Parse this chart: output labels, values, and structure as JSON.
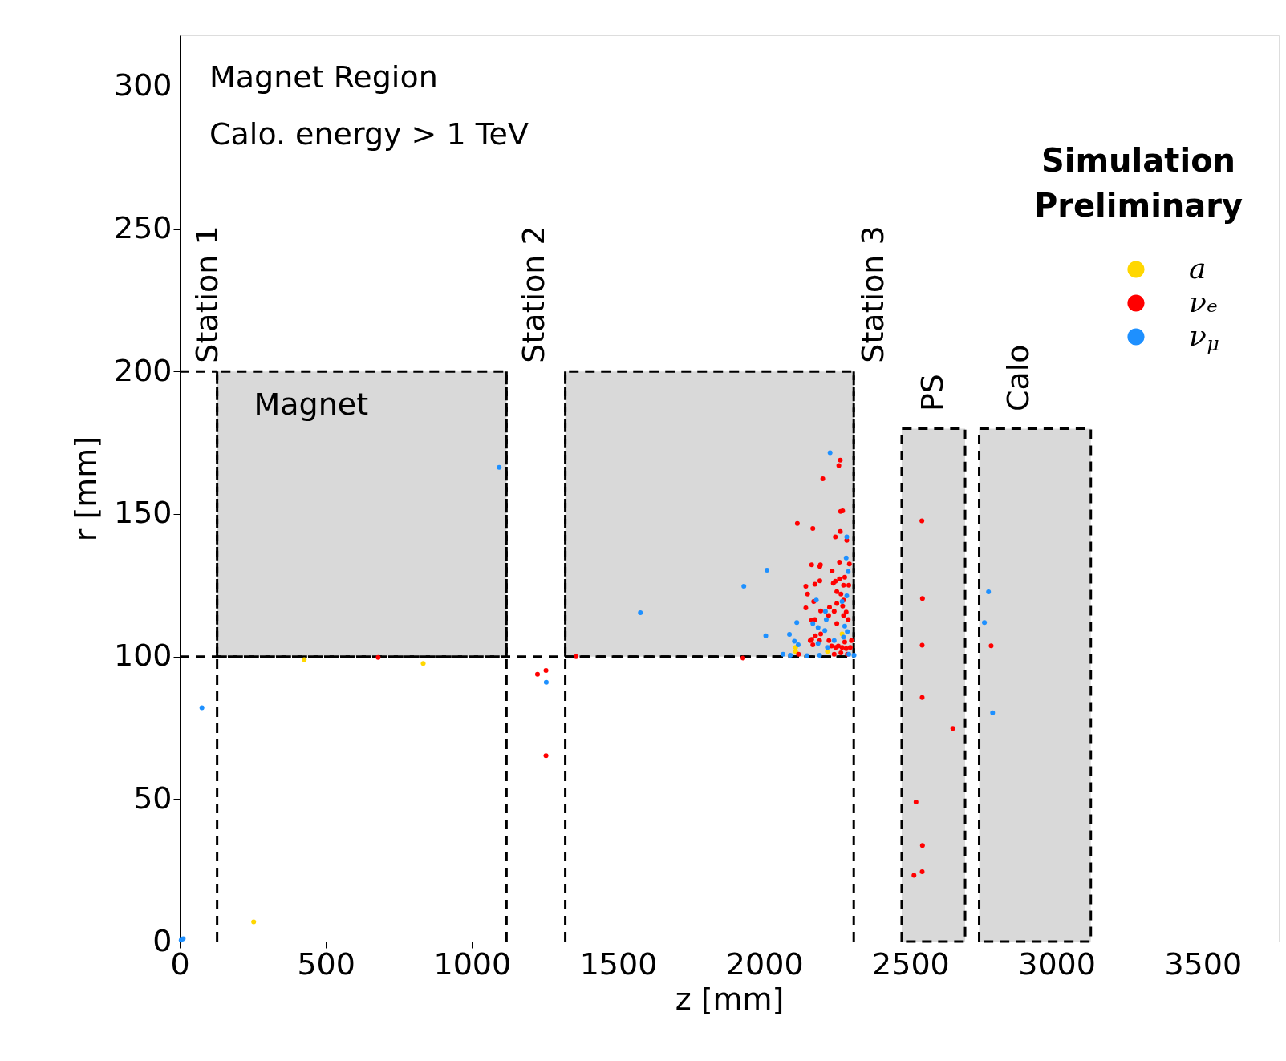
{
  "chart_data": {
    "type": "scatter",
    "xlabel": "z [mm]",
    "ylabel": "r [mm]",
    "xlim": [
      0,
      3760
    ],
    "ylim": [
      0,
      318
    ],
    "xticks": [
      0,
      500,
      1000,
      1500,
      2000,
      2500,
      3000,
      3500
    ],
    "yticks": [
      0,
      50,
      100,
      150,
      200,
      250,
      300
    ],
    "grid": false,
    "legend": "top right",
    "annotations": [
      "Magnet Region",
      "Calo. energy > 1 TeV",
      "Simulation\nPreliminary",
      "Station 1",
      "Station 2",
      "Station 3",
      "PS",
      "Calo",
      "Magnet"
    ],
    "series": [
      {
        "type": "area",
        "color": "#d9d9d9",
        "line_style": "dashed",
        "x": [
          128,
          128,
          1118,
          1118,
          128
        ],
        "values": [
          100,
          200,
          200,
          100,
          100
        ]
      },
      {
        "type": "area",
        "color": "#d9d9d9",
        "line_style": "dashed",
        "x": [
          1319,
          1319,
          2306,
          2306,
          1319
        ],
        "values": [
          100,
          200,
          200,
          100,
          100
        ]
      },
      {
        "type": "area",
        "color": "#d9d9d9",
        "line_style": "dashed",
        "x": [
          2470,
          2470,
          2687,
          2687,
          2470
        ],
        "values": [
          0,
          180,
          180,
          0,
          0
        ]
      },
      {
        "type": "area",
        "color": "#d9d9d9",
        "line_style": "dashed",
        "x": [
          2735,
          2735,
          3117,
          3117,
          2735
        ],
        "values": [
          0,
          180,
          180,
          0,
          0
        ]
      },
      {
        "type": "line",
        "color": "#000000",
        "line_style": "dashed",
        "x": [
          0,
          128
        ],
        "values": [
          200,
          200
        ]
      },
      {
        "type": "line",
        "color": "#000000",
        "line_style": "dashed",
        "x": [
          0,
          2306
        ],
        "values": [
          100,
          100
        ]
      },
      {
        "type": "line",
        "color": "#000000",
        "line_style": "dashed",
        "x": [
          128,
          128
        ],
        "values": [
          0,
          200
        ]
      },
      {
        "type": "line",
        "color": "#000000",
        "line_style": "dashed",
        "x": [
          1118,
          1118
        ],
        "values": [
          0,
          200
        ]
      },
      {
        "type": "line",
        "color": "#000000",
        "line_style": "dashed",
        "x": [
          1319,
          1319
        ],
        "values": [
          0,
          200
        ]
      },
      {
        "type": "line",
        "color": "#000000",
        "line_style": "dashed",
        "x": [
          2306,
          2306
        ],
        "values": [
          0,
          200
        ]
      },
      {
        "marker": "circle",
        "name": "a",
        "color": "#ffd700",
        "x": [
          426,
          833,
          253,
          2266,
          2107,
          2216,
          2107
        ],
        "values": [
          98.9,
          97.6,
          6.9,
          107.9,
          103.2,
          101.8,
          101.8
        ]
      },
      {
        "marker": "circle",
        "name": "νₑ",
        "color": "#ff0000",
        "x": [
          679,
          1224,
          1253,
          1253,
          1356,
          2539,
          2541,
          2540,
          2540,
          2645,
          2519,
          2541,
          2540,
          2512,
          2776,
          2260,
          2255,
          2200,
          2268,
          2261,
          2113,
          2166,
          2260,
          2243,
          2282,
          2257,
          2162,
          2192,
          2190,
          2291,
          2232,
          2275,
          2257,
          2243,
          2289,
          2271,
          2190,
          2173,
          2142,
          2236,
          2248,
          2262,
          2148,
          2169,
          2271,
          2248,
          2268,
          2142,
          2193,
          2223,
          2239,
          2280,
          2271,
          2220,
          2248,
          2287,
          2162,
          2173,
          2193,
          2175,
          2157,
          2166,
          2189,
          2221,
          2275,
          2298,
          2230,
          2244,
          2253,
          2266,
          2280,
          2294,
          2239,
          2262,
          2284,
          2162,
          2117,
          1927
        ],
        "values": [
          99.7,
          93.8,
          95.1,
          65.2,
          100,
          147.6,
          120.4,
          104,
          85.6,
          74.8,
          49,
          33.7,
          24.5,
          23.2,
          103.8,
          168.9,
          167,
          162.4,
          151.1,
          150.9,
          146.7,
          144.9,
          143.9,
          142,
          140.8,
          133.1,
          132.2,
          132.2,
          131.6,
          132.5,
          130,
          127.8,
          127.3,
          126.4,
          125,
          125,
          126.6,
          125.4,
          124.7,
          125.7,
          122.8,
          121.9,
          121.9,
          119.3,
          119.8,
          118.6,
          117.7,
          117.1,
          116,
          117.3,
          115.9,
          115.6,
          114.4,
          114.4,
          111.6,
          113,
          112.8,
          113,
          107.9,
          107.3,
          105.6,
          104.1,
          105.6,
          105.6,
          105.1,
          105.6,
          103.7,
          103.2,
          103.7,
          103.2,
          102.8,
          103.2,
          100.8,
          101.3,
          100.8,
          106,
          100.8,
          99.5
        ]
      },
      {
        "marker": "circle",
        "name": "ν$_{μ}$",
        "color": "#1e90ff",
        "x": [
          1093,
          1576,
          1254,
          76,
          5,
          12,
          2767,
          2753,
          2781,
          2225,
          2282,
          2280,
          2287,
          2009,
          2178,
          2282,
          2266,
          1930,
          2209,
          2212,
          2111,
          2166,
          2184,
          2207,
          2275,
          2284,
          2005,
          2086,
          2103,
          2184,
          2239,
          2116,
          2216,
          2064,
          2089,
          2146,
          2189,
          2289,
          2307,
          2271
        ],
        "values": [
          166.4,
          115.4,
          91,
          82,
          0.5,
          1,
          122.7,
          111.9,
          80.3,
          171.5,
          142,
          134.6,
          129.8,
          130.3,
          119.8,
          121.3,
          119.3,
          124.7,
          115.9,
          113,
          111.9,
          111.6,
          110.2,
          109.1,
          110.7,
          108.8,
          107.3,
          107.8,
          105.4,
          104.6,
          105.6,
          104.1,
          103.2,
          100.8,
          100.5,
          100.3,
          100.5,
          100.8,
          100.5,
          106.8
        ]
      }
    ]
  }
}
